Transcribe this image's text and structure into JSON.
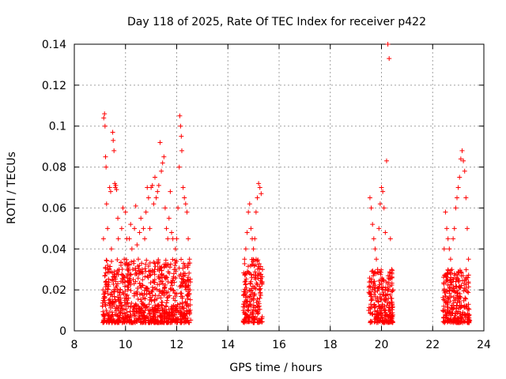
{
  "chart_data": {
    "type": "scatter",
    "title": "Day 118 of 2025, Rate Of TEC Index for receiver p422",
    "xlabel": "GPS time / hours",
    "ylabel": "ROTI / TECUs",
    "xlim": [
      8,
      24
    ],
    "ylim": [
      0,
      0.14
    ],
    "xticks": [
      8,
      10,
      12,
      14,
      16,
      18,
      20,
      22,
      24
    ],
    "yticks": [
      0,
      0.02,
      0.04,
      0.06,
      0.08,
      0.1,
      0.12,
      0.14
    ],
    "xtick_labels": [
      "8",
      "10",
      "12",
      "14",
      "16",
      "18",
      "20",
      "22",
      "24"
    ],
    "ytick_labels": [
      "0",
      "0.02",
      "0.04",
      "0.06",
      "0.08",
      "0.1",
      "0.12",
      "0.14"
    ],
    "grid": true,
    "marker": "+",
    "color": "#ff0000",
    "series": [
      {
        "name": "ROTI",
        "points": [
          [
            9.1,
            0.012
          ],
          [
            9.12,
            0.02
          ],
          [
            9.14,
            0.045
          ],
          [
            9.15,
            0.104
          ],
          [
            9.18,
            0.106
          ],
          [
            9.2,
            0.1
          ],
          [
            9.22,
            0.085
          ],
          [
            9.24,
            0.08
          ],
          [
            9.26,
            0.062
          ],
          [
            9.3,
            0.05
          ],
          [
            9.32,
            0.03
          ],
          [
            9.35,
            0.015
          ],
          [
            9.38,
            0.07
          ],
          [
            9.42,
            0.068
          ],
          [
            9.45,
            0.04
          ],
          [
            9.48,
            0.025
          ],
          [
            9.5,
            0.097
          ],
          [
            9.52,
            0.093
          ],
          [
            9.55,
            0.088
          ],
          [
            9.58,
            0.072
          ],
          [
            9.6,
            0.07
          ],
          [
            9.62,
            0.071
          ],
          [
            9.65,
            0.069
          ],
          [
            9.7,
            0.055
          ],
          [
            9.72,
            0.045
          ],
          [
            9.75,
            0.03
          ],
          [
            9.8,
            0.02
          ],
          [
            9.85,
            0.05
          ],
          [
            9.9,
            0.06
          ],
          [
            9.95,
            0.035
          ],
          [
            10.0,
            0.058
          ],
          [
            10.05,
            0.045
          ],
          [
            10.1,
            0.03
          ],
          [
            10.15,
            0.045
          ],
          [
            10.2,
            0.052
          ],
          [
            10.25,
            0.04
          ],
          [
            10.3,
            0.025
          ],
          [
            10.35,
            0.05
          ],
          [
            10.4,
            0.061
          ],
          [
            10.45,
            0.042
          ],
          [
            10.5,
            0.035
          ],
          [
            10.55,
            0.048
          ],
          [
            10.6,
            0.055
          ],
          [
            10.65,
            0.03
          ],
          [
            10.7,
            0.05
          ],
          [
            10.75,
            0.045
          ],
          [
            10.8,
            0.058
          ],
          [
            10.85,
            0.07
          ],
          [
            10.9,
            0.065
          ],
          [
            10.95,
            0.05
          ],
          [
            11.0,
            0.07
          ],
          [
            11.05,
            0.071
          ],
          [
            11.1,
            0.062
          ],
          [
            11.15,
            0.075
          ],
          [
            11.2,
            0.065
          ],
          [
            11.25,
            0.068
          ],
          [
            11.3,
            0.071
          ],
          [
            11.35,
            0.092
          ],
          [
            11.4,
            0.078
          ],
          [
            11.45,
            0.082
          ],
          [
            11.5,
            0.085
          ],
          [
            11.55,
            0.06
          ],
          [
            11.6,
            0.05
          ],
          [
            11.65,
            0.045
          ],
          [
            11.7,
            0.055
          ],
          [
            11.75,
            0.068
          ],
          [
            11.8,
            0.048
          ],
          [
            11.85,
            0.045
          ],
          [
            11.9,
            0.03
          ],
          [
            11.95,
            0.04
          ],
          [
            12.0,
            0.045
          ],
          [
            12.05,
            0.06
          ],
          [
            12.1,
            0.08
          ],
          [
            12.12,
            0.105
          ],
          [
            12.15,
            0.1
          ],
          [
            12.18,
            0.095
          ],
          [
            12.2,
            0.088
          ],
          [
            12.25,
            0.07
          ],
          [
            12.3,
            0.065
          ],
          [
            12.35,
            0.062
          ],
          [
            12.4,
            0.058
          ],
          [
            12.45,
            0.045
          ],
          [
            12.5,
            0.035
          ],
          [
            12.52,
            0.02
          ],
          [
            14.6,
            0.01
          ],
          [
            14.65,
            0.035
          ],
          [
            14.7,
            0.04
          ],
          [
            14.75,
            0.048
          ],
          [
            14.8,
            0.058
          ],
          [
            14.85,
            0.062
          ],
          [
            14.9,
            0.05
          ],
          [
            14.95,
            0.045
          ],
          [
            15.0,
            0.04
          ],
          [
            15.05,
            0.045
          ],
          [
            15.1,
            0.058
          ],
          [
            15.15,
            0.065
          ],
          [
            15.2,
            0.072
          ],
          [
            15.25,
            0.07
          ],
          [
            15.3,
            0.067
          ],
          [
            15.35,
            0.03
          ],
          [
            19.5,
            0.01
          ],
          [
            19.55,
            0.065
          ],
          [
            19.6,
            0.06
          ],
          [
            19.65,
            0.052
          ],
          [
            19.7,
            0.045
          ],
          [
            19.75,
            0.04
          ],
          [
            19.8,
            0.035
          ],
          [
            19.85,
            0.03
          ],
          [
            19.9,
            0.05
          ],
          [
            19.95,
            0.062
          ],
          [
            20.0,
            0.07
          ],
          [
            20.05,
            0.068
          ],
          [
            20.1,
            0.06
          ],
          [
            20.15,
            0.048
          ],
          [
            20.2,
            0.083
          ],
          [
            20.25,
            0.14
          ],
          [
            20.3,
            0.133
          ],
          [
            20.35,
            0.045
          ],
          [
            20.4,
            0.03
          ],
          [
            20.45,
            0.02
          ],
          [
            22.4,
            0.01
          ],
          [
            22.45,
            0.04
          ],
          [
            22.5,
            0.058
          ],
          [
            22.55,
            0.05
          ],
          [
            22.6,
            0.045
          ],
          [
            22.65,
            0.04
          ],
          [
            22.7,
            0.035
          ],
          [
            22.75,
            0.03
          ],
          [
            22.8,
            0.045
          ],
          [
            22.85,
            0.05
          ],
          [
            22.9,
            0.06
          ],
          [
            22.95,
            0.065
          ],
          [
            23.0,
            0.07
          ],
          [
            23.05,
            0.075
          ],
          [
            23.1,
            0.084
          ],
          [
            23.15,
            0.088
          ],
          [
            23.2,
            0.083
          ],
          [
            23.25,
            0.078
          ],
          [
            23.3,
            0.065
          ],
          [
            23.35,
            0.05
          ],
          [
            23.4,
            0.035
          ]
        ],
        "dense_bands": [
          {
            "x_range": [
              9.1,
              12.55
            ],
            "y_range": [
              0.004,
              0.035
            ]
          },
          {
            "x_range": [
              14.6,
              15.35
            ],
            "y_range": [
              0.004,
              0.035
            ]
          },
          {
            "x_range": [
              19.5,
              20.45
            ],
            "y_range": [
              0.004,
              0.03
            ]
          },
          {
            "x_range": [
              22.4,
              23.45
            ],
            "y_range": [
              0.004,
              0.03
            ]
          }
        ]
      }
    ]
  }
}
